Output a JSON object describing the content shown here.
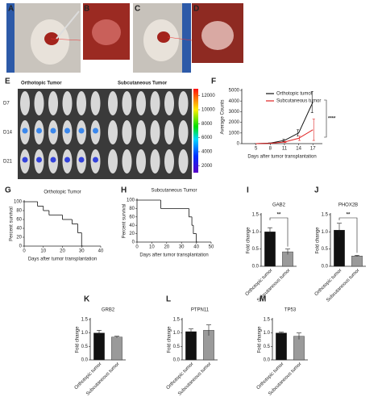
{
  "photo_panels": [
    "A",
    "B",
    "C",
    "D"
  ],
  "panel_e": {
    "panel": "E",
    "groups": [
      "Orthotopic Tumor",
      "Subcutaneous Tumor"
    ],
    "rows": [
      "D7",
      "D14",
      "D21"
    ],
    "colorbar_lim": [
      1000,
      13000
    ],
    "colorbar_ticks": [
      2000,
      4000,
      6000,
      8000,
      10000,
      12000
    ]
  },
  "chart_data": [
    {
      "type": "line",
      "panel": "F",
      "x": [
        5,
        8,
        11,
        14,
        17
      ],
      "xlim": [
        2,
        19
      ],
      "xticks": [
        5,
        8,
        11,
        14,
        17
      ],
      "ylim": [
        0,
        5000
      ],
      "yticks": [
        0,
        1000,
        2000,
        3000,
        4000,
        5000
      ],
      "x_label": "Days after tumor transplantation",
      "y_label": "Average Counts",
      "annotation": "****",
      "series": [
        {
          "name": "Orthotopic tumor",
          "color": "#111111",
          "values": [
            0,
            50,
            300,
            1000,
            3900
          ],
          "errors": [
            0,
            20,
            100,
            300,
            1000
          ]
        },
        {
          "name": "Subcutaneous tumor",
          "color": "#e02020",
          "values": [
            0,
            30,
            150,
            500,
            1300
          ],
          "errors": [
            0,
            10,
            50,
            200,
            1000
          ]
        }
      ]
    },
    {
      "type": "step",
      "panel": "G",
      "title": "Orthotopic Tumor",
      "x": [
        0,
        7,
        10,
        13,
        20,
        25,
        28,
        30
      ],
      "values": [
        100,
        90,
        80,
        70,
        60,
        50,
        30,
        0
      ],
      "xlim": [
        0,
        40
      ],
      "xticks": [
        0,
        10,
        20,
        30,
        40
      ],
      "ylim": [
        0,
        100
      ],
      "yticks": [
        0,
        20,
        40,
        60,
        80,
        100
      ],
      "x_label": "Days after tumor transplantation",
      "y_label": "Percent survival",
      "color": "#111111"
    },
    {
      "type": "step",
      "panel": "H",
      "title": "Subcutaneous Tumor",
      "x": [
        0,
        16,
        35,
        37,
        38,
        40
      ],
      "values": [
        100,
        80,
        60,
        40,
        20,
        0
      ],
      "xlim": [
        0,
        50
      ],
      "xticks": [
        0,
        10,
        20,
        30,
        40,
        50
      ],
      "ylim": [
        0,
        100
      ],
      "yticks": [
        0,
        20,
        40,
        60,
        80,
        100
      ],
      "x_label": "Days after tumor transplantation",
      "y_label": "Percent survival",
      "color": "#111111"
    },
    {
      "type": "bar",
      "panel": "I",
      "title": "GAB2",
      "categories": [
        "Orthotopic tumor",
        "Subcutaneous tumor"
      ],
      "values": [
        1.0,
        0.42
      ],
      "errors": [
        0.12,
        0.08
      ],
      "colors": [
        "#111111",
        "#9a9a9a"
      ],
      "ylim": [
        0,
        1.5
      ],
      "yticks": [
        {
          "value": 0,
          "label": "0.0"
        },
        0.5,
        {
          "value": 1,
          "label": "1.0"
        },
        1.5
      ],
      "y_label": "Fold change",
      "annotation": "**"
    },
    {
      "type": "bar",
      "panel": "J",
      "title": "PHOX2B",
      "categories": [
        "Orthotopic tumor",
        "Subcutaneous tumor"
      ],
      "values": [
        1.05,
        0.3
      ],
      "errors": [
        0.2,
        0.02
      ],
      "colors": [
        "#111111",
        "#9a9a9a"
      ],
      "ylim": [
        0,
        1.5
      ],
      "yticks": [
        {
          "value": 0,
          "label": "0.0"
        },
        0.5,
        {
          "value": 1,
          "label": "1.0"
        },
        1.5
      ],
      "y_label": "Fold change",
      "annotation": "**"
    },
    {
      "type": "bar",
      "panel": "K",
      "title": "GRB2",
      "categories": [
        "Orthotopic tumor",
        "Subcutaneous tumor"
      ],
      "values": [
        1.0,
        0.85
      ],
      "errors": [
        0.1,
        0.03
      ],
      "colors": [
        "#111111",
        "#9a9a9a"
      ],
      "ylim": [
        0,
        1.5
      ],
      "yticks": [
        {
          "value": 0,
          "label": "0.0"
        },
        0.5,
        {
          "value": 1,
          "label": "1.0"
        },
        1.5
      ],
      "y_label": "Fold change"
    },
    {
      "type": "bar",
      "panel": "L",
      "title": "PTPN11",
      "categories": [
        "Orthotopic tumor",
        "Subcutaneous tumor"
      ],
      "values": [
        1.05,
        1.1
      ],
      "errors": [
        0.1,
        0.2
      ],
      "colors": [
        "#111111",
        "#9a9a9a"
      ],
      "ylim": [
        0,
        1.5
      ],
      "yticks": [
        {
          "value": 0,
          "label": "0.0"
        },
        0.5,
        {
          "value": 1,
          "label": "1.0"
        },
        1.5
      ],
      "y_label": "Fold change"
    },
    {
      "type": "bar",
      "panel": "M",
      "title": "TP53",
      "categories": [
        "Orthotopic tumor",
        "Subcutaneous tumor"
      ],
      "values": [
        1.0,
        0.88
      ],
      "errors": [
        0.03,
        0.12
      ],
      "colors": [
        "#111111",
        "#9a9a9a"
      ],
      "ylim": [
        0,
        1.5
      ],
      "yticks": [
        {
          "value": 0,
          "label": "0.0"
        },
        0.5,
        {
          "value": 1,
          "label": "1.0"
        },
        1.5
      ],
      "y_label": "Fold change"
    }
  ]
}
